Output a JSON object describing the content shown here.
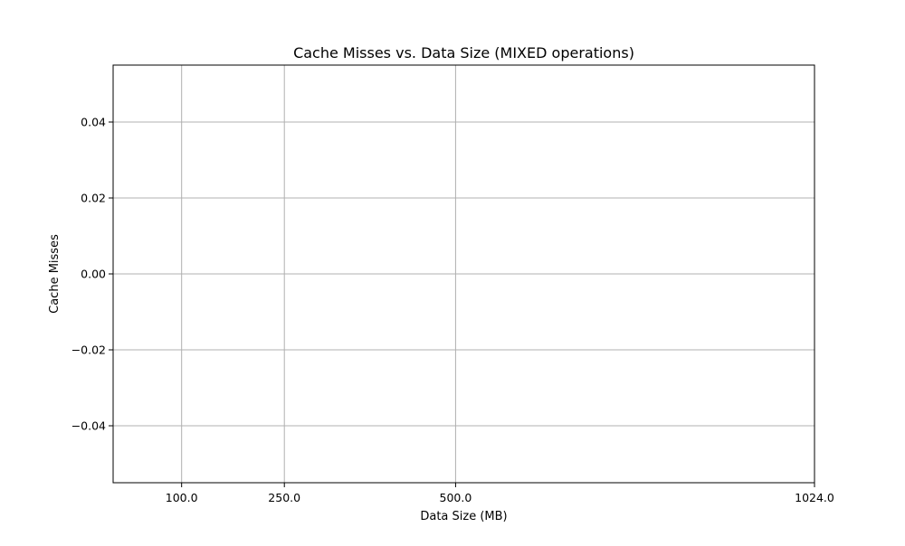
{
  "chart_data": {
    "type": "line",
    "title": "Cache Misses vs. Data Size (MIXED operations)",
    "xlabel": "Data Size (MB)",
    "ylabel": "Cache Misses",
    "x_ticks": [
      100.0,
      250.0,
      500.0,
      1024.0
    ],
    "x_tick_labels": [
      "100.0",
      "250.0",
      "500.0",
      "1024.0"
    ],
    "y_ticks": [
      0.04,
      0.02,
      0.0,
      -0.02,
      -0.04
    ],
    "y_tick_labels": [
      "0.04",
      "0.02",
      "0.00",
      "−0.02",
      "−0.04"
    ],
    "xlim": [
      0,
      1024
    ],
    "ylim": [
      -0.055,
      0.055
    ],
    "grid": true,
    "series": []
  },
  "colors": {
    "grid": "#b0b0b0",
    "axes": "#000000",
    "background": "#ffffff"
  }
}
